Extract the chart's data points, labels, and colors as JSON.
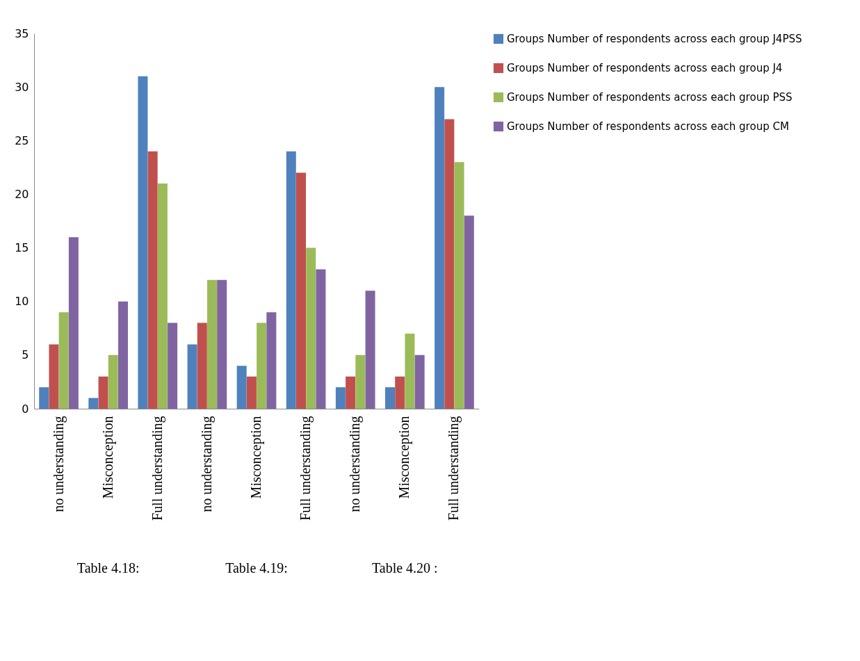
{
  "chart_data": {
    "type": "bar",
    "categories": [
      "no understanding",
      "Misconception",
      "Full understanding",
      "no understanding",
      "Misconception",
      "Full understanding",
      "no understanding",
      "Misconception",
      "Full understanding"
    ],
    "series": [
      {
        "name": "Groups Number of respondents across each group J4PSS",
        "color": "#4f81bd",
        "values": [
          2,
          1,
          31,
          6,
          4,
          24,
          2,
          2,
          30
        ]
      },
      {
        "name": "Groups Number of respondents across each group J4",
        "color": "#c0504d",
        "values": [
          6,
          3,
          24,
          8,
          3,
          22,
          3,
          3,
          27
        ]
      },
      {
        "name": "Groups Number of respondents across each group PSS",
        "color": "#9bbb59",
        "values": [
          9,
          5,
          21,
          12,
          8,
          15,
          5,
          7,
          23
        ]
      },
      {
        "name": "Groups Number of respondents across each group CM",
        "color": "#8064a2",
        "values": [
          16,
          10,
          8,
          12,
          9,
          13,
          11,
          5,
          18
        ]
      }
    ],
    "annotations": [
      "Table 4.18:",
      "Table 4.19:",
      "Table 4.20 :"
    ],
    "ylim": [
      0,
      35
    ],
    "yticks": [
      0,
      5,
      10,
      15,
      20,
      25,
      30,
      35
    ],
    "grid": false,
    "legend": "right"
  }
}
